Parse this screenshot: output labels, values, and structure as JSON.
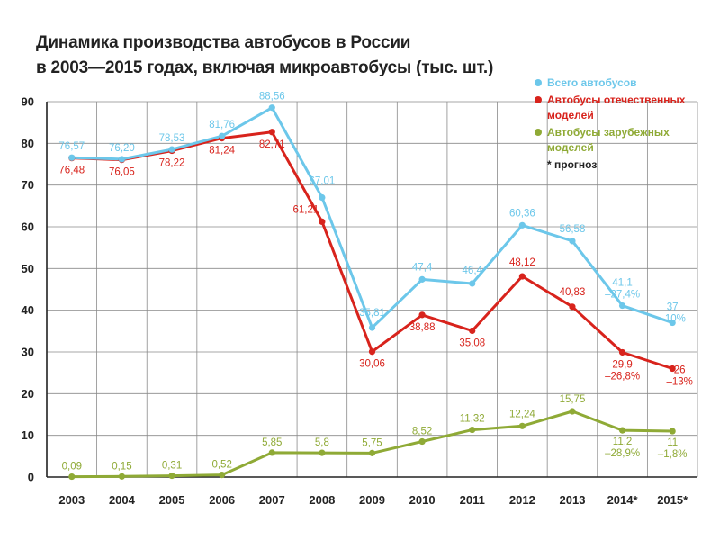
{
  "title": {
    "line1": "Динамика производства автобусов в России",
    "line2": "в 2003—2015 годах, включая микроавтобусы (тыс. шт.)"
  },
  "legend": {
    "items": [
      {
        "label": "Всего автобусов",
        "color": "#6cc7ea"
      },
      {
        "label": "Автобусы отечественных моделей",
        "color": "#d8231c"
      },
      {
        "label": "Автобусы зарубежных моделей",
        "color": "#8faa36"
      }
    ],
    "note": "* прогноз"
  },
  "chart_data": {
    "type": "line",
    "categories": [
      "2003",
      "2004",
      "2005",
      "2006",
      "2007",
      "2008",
      "2009",
      "2010",
      "2011",
      "2012",
      "2013",
      "2014*",
      "2015*"
    ],
    "ylim": [
      0,
      90
    ],
    "yticks": [
      0,
      10,
      20,
      30,
      40,
      50,
      60,
      70,
      80,
      90
    ],
    "grid": true,
    "legend_position": "top-right",
    "series": [
      {
        "name": "Всего автобусов",
        "color": "#6cc7ea",
        "values": [
          76.57,
          76.2,
          78.53,
          81.76,
          88.56,
          67.01,
          35.81,
          47.4,
          46.4,
          60.36,
          56.58,
          41.1,
          37
        ],
        "labels": [
          "76,57",
          "76,20",
          "78,53",
          "81,76",
          "88,56",
          "67,01",
          "35,81",
          "47,4",
          "46,4",
          "60,36",
          "56,58",
          "41,1",
          "37"
        ],
        "sublabels": [
          "",
          "",
          "",
          "",
          "",
          "",
          "",
          "",
          "",
          "",
          "",
          "–27,4%",
          "–10%"
        ]
      },
      {
        "name": "Автобусы отечественных моделей",
        "color": "#d8231c",
        "values": [
          76.48,
          76.05,
          78.22,
          81.24,
          82.71,
          61.21,
          30.06,
          38.88,
          35.08,
          48.12,
          40.83,
          29.9,
          26
        ],
        "labels": [
          "76,48",
          "76,05",
          "78,22",
          "81,24",
          "82,71",
          "61,21",
          "30,06",
          "38,88",
          "35,08",
          "48,12",
          "40,83",
          "29,9",
          "26"
        ],
        "sublabels": [
          "",
          "",
          "",
          "",
          "",
          "",
          "",
          "",
          "",
          "",
          "",
          "–26,8%",
          "–13%"
        ]
      },
      {
        "name": "Автобусы зарубежных моделей",
        "color": "#8faa36",
        "values": [
          0.09,
          0.15,
          0.31,
          0.52,
          5.85,
          5.8,
          5.75,
          8.52,
          11.32,
          12.24,
          15.75,
          11.2,
          11
        ],
        "labels": [
          "0,09",
          "0,15",
          "0,31",
          "0,52",
          "5,85",
          "5,8",
          "5,75",
          "8,52",
          "11,32",
          "12,24",
          "15,75",
          "11,2",
          "11"
        ],
        "sublabels": [
          "",
          "",
          "",
          "",
          "",
          "",
          "",
          "",
          "",
          "",
          "",
          "–28,9%",
          "–1,8%"
        ]
      }
    ]
  }
}
